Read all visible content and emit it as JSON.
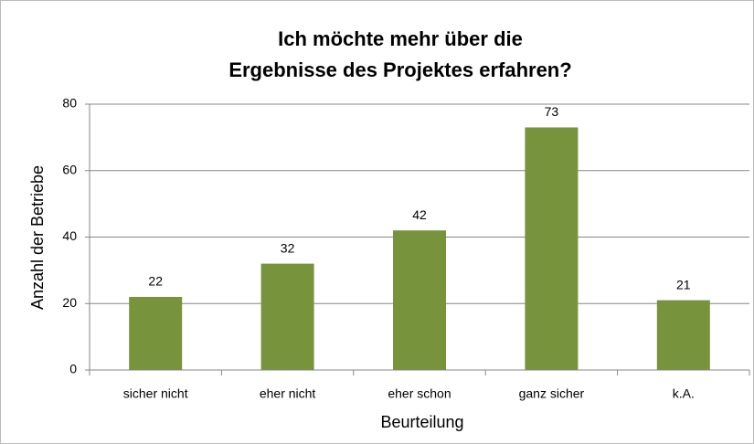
{
  "chart_data": {
    "type": "bar",
    "title": [
      "Ich möchte mehr über die",
      "Ergebnisse des Projektes erfahren?"
    ],
    "x_label": "Beurteilung",
    "y_label": "Anzahl der Betriebe",
    "categories": [
      "sicher nicht",
      "eher nicht",
      "eher schon",
      "ganz sicher",
      "k.A."
    ],
    "values": [
      22,
      32,
      42,
      73,
      21
    ],
    "color": "#77933c",
    "ylim": [
      0,
      80
    ],
    "yticks": [
      0,
      20,
      40,
      60,
      80
    ],
    "grid": true
  }
}
